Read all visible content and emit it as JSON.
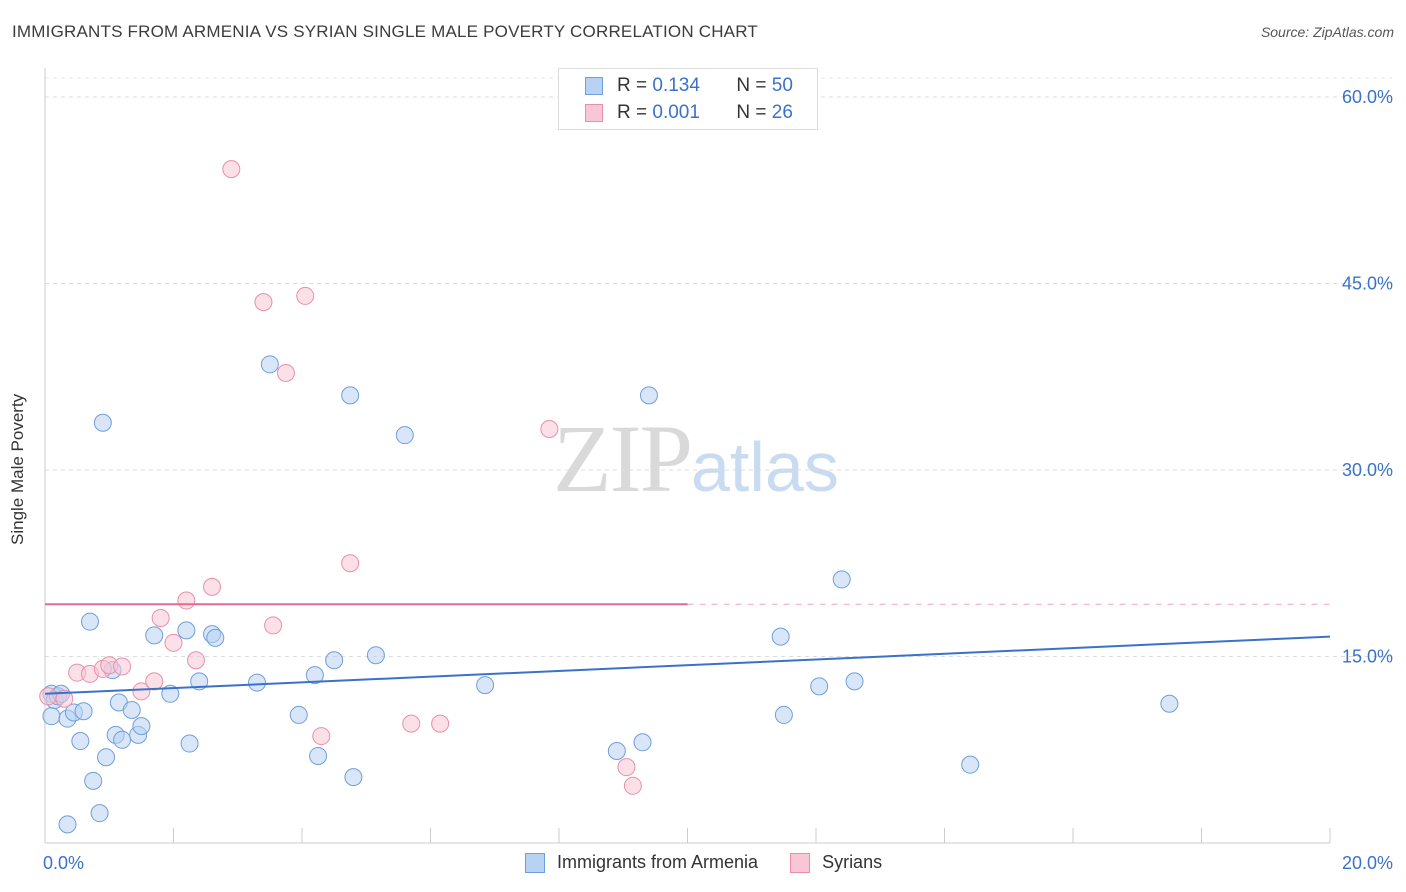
{
  "title": "IMMIGRANTS FROM ARMENIA VS SYRIAN SINGLE MALE POVERTY CORRELATION CHART",
  "source": "Source: ZipAtlas.com",
  "watermark": {
    "zip": "ZIP",
    "atlas": "atlas"
  },
  "legend": {
    "r_label": "R =",
    "n_label": "N =",
    "rows": [
      {
        "r": "0.134",
        "n": "50"
      },
      {
        "r": "0.001",
        "n": "26"
      }
    ]
  },
  "colors": {
    "blue_fill": "#b8d2f3",
    "blue_stroke": "#6f9fd9",
    "blue_line": "#3a72c9",
    "pink_fill": "#f8c6d5",
    "pink_stroke": "#e88fab",
    "pink_line": "#e06a92",
    "tick_label": "#3a72c9"
  },
  "chart_data": {
    "type": "scatter",
    "xlabel": "",
    "ylabel": "Single Male Poverty",
    "xlim": [
      0,
      20
    ],
    "ylim": [
      0,
      60
    ],
    "x_tick_labels": [
      {
        "value": 0,
        "label": "0.0%"
      },
      {
        "value": 20,
        "label": "20.0%"
      }
    ],
    "y_tick_labels": [
      {
        "value": 15,
        "label": "15.0%"
      },
      {
        "value": 30,
        "label": "30.0%"
      },
      {
        "value": 45,
        "label": "45.0%"
      },
      {
        "value": 60,
        "label": "60.0%"
      }
    ],
    "grid": true,
    "legend_position": "top-center",
    "series": [
      {
        "name": "Immigrants from Armenia",
        "points": [
          [
            0.1,
            12.0
          ],
          [
            0.1,
            10.2
          ],
          [
            0.15,
            11.5
          ],
          [
            0.2,
            11.8
          ],
          [
            0.25,
            12.0
          ],
          [
            0.35,
            10.0
          ],
          [
            0.45,
            10.5
          ],
          [
            0.55,
            8.2
          ],
          [
            0.6,
            10.6
          ],
          [
            0.7,
            17.8
          ],
          [
            0.75,
            5.0
          ],
          [
            0.85,
            2.4
          ],
          [
            0.9,
            33.8
          ],
          [
            0.95,
            6.9
          ],
          [
            1.05,
            13.9
          ],
          [
            1.1,
            8.7
          ],
          [
            1.15,
            11.3
          ],
          [
            1.2,
            8.3
          ],
          [
            1.35,
            10.7
          ],
          [
            1.45,
            8.7
          ],
          [
            1.5,
            9.4
          ],
          [
            1.7,
            16.7
          ],
          [
            1.95,
            12.0
          ],
          [
            2.2,
            17.1
          ],
          [
            2.25,
            8.0
          ],
          [
            2.4,
            13.0
          ],
          [
            2.6,
            16.8
          ],
          [
            2.65,
            16.5
          ],
          [
            3.3,
            12.9
          ],
          [
            3.5,
            38.5
          ],
          [
            3.95,
            10.3
          ],
          [
            4.2,
            13.5
          ],
          [
            4.25,
            7.0
          ],
          [
            4.5,
            14.7
          ],
          [
            4.75,
            36.0
          ],
          [
            4.8,
            5.3
          ],
          [
            5.15,
            15.1
          ],
          [
            5.6,
            32.8
          ],
          [
            6.85,
            12.7
          ],
          [
            8.9,
            7.4
          ],
          [
            9.3,
            8.1
          ],
          [
            9.4,
            36.0
          ],
          [
            11.45,
            16.6
          ],
          [
            11.5,
            10.3
          ],
          [
            12.05,
            12.6
          ],
          [
            12.4,
            21.2
          ],
          [
            12.6,
            13.0
          ],
          [
            14.4,
            6.3
          ],
          [
            17.5,
            11.2
          ],
          [
            0.35,
            1.5
          ]
        ]
      },
      {
        "name": "Syrians",
        "points": [
          [
            0.05,
            11.8
          ],
          [
            0.3,
            11.6
          ],
          [
            0.5,
            13.7
          ],
          [
            0.7,
            13.6
          ],
          [
            0.9,
            14.0
          ],
          [
            1.0,
            14.3
          ],
          [
            1.2,
            14.2
          ],
          [
            1.5,
            12.2
          ],
          [
            1.7,
            13.0
          ],
          [
            1.8,
            18.1
          ],
          [
            2.0,
            16.1
          ],
          [
            2.2,
            19.5
          ],
          [
            2.35,
            14.7
          ],
          [
            2.6,
            20.6
          ],
          [
            2.9,
            54.2
          ],
          [
            3.4,
            43.5
          ],
          [
            3.55,
            17.5
          ],
          [
            3.75,
            37.8
          ],
          [
            4.05,
            44.0
          ],
          [
            4.3,
            8.6
          ],
          [
            4.75,
            22.5
          ],
          [
            5.7,
            9.6
          ],
          [
            6.15,
            9.6
          ],
          [
            7.85,
            33.3
          ],
          [
            9.05,
            6.1
          ],
          [
            9.15,
            4.6
          ]
        ]
      }
    ],
    "trend_lines": [
      {
        "series": "Immigrants from Armenia",
        "x": [
          0,
          20
        ],
        "y": [
          12.0,
          16.6
        ]
      },
      {
        "series": "Syrians",
        "x": [
          0,
          10
        ],
        "y": [
          19.2,
          19.2
        ],
        "dashed_extension_to": 20
      }
    ]
  }
}
